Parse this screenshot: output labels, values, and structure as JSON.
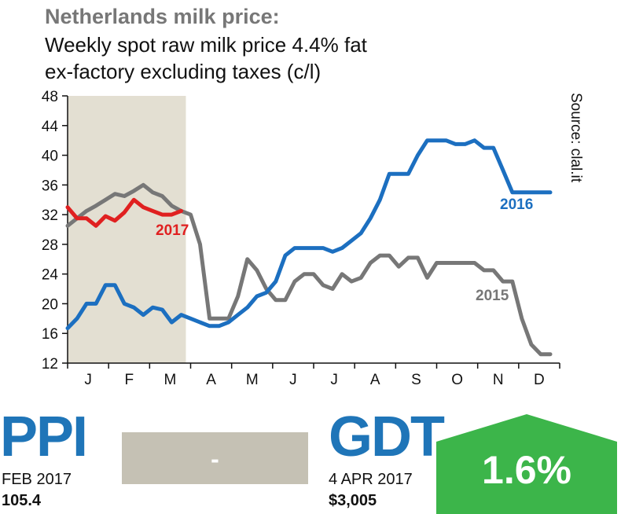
{
  "chart_data": {
    "type": "line",
    "title": "Netherlands milk price:",
    "subtitle_line1": "Weekly spot raw milk price 4.4% fat",
    "subtitle_line2": "ex-factory excluding taxes (c/l)",
    "source": "Source: clal.it",
    "xlabel": "",
    "ylabel": "",
    "ylim": [
      12,
      48
    ],
    "y_ticks": [
      "48",
      "44",
      "40",
      "36",
      "32",
      "28",
      "24",
      "20",
      "16",
      "12"
    ],
    "y_tick_values": [
      48,
      44,
      40,
      36,
      32,
      28,
      24,
      20,
      16,
      12
    ],
    "x_tick_labels": [
      "J",
      "F",
      "M",
      "A",
      "M",
      "J",
      "J",
      "A",
      "S",
      "O",
      "N",
      "D"
    ],
    "x_range_weeks": [
      0,
      52
    ],
    "shaded_weeks": [
      0,
      12.5
    ],
    "series": [
      {
        "name": "2015",
        "label": "2015",
        "color": "#777777",
        "weeks": [
          0,
          1,
          2,
          3,
          4,
          5,
          6,
          7,
          8,
          9,
          10,
          11,
          12,
          13,
          14,
          15,
          16,
          17,
          18,
          19,
          20,
          21,
          22,
          23,
          24,
          25,
          26,
          27,
          28,
          29,
          30,
          31,
          32,
          33,
          34,
          35,
          36,
          37,
          38,
          39,
          40,
          41,
          42,
          43,
          44,
          45,
          46,
          47,
          48,
          49,
          50,
          51
        ],
        "values": [
          30.5,
          31.5,
          32.5,
          33.2,
          34,
          34.8,
          34.5,
          35.2,
          36,
          35,
          34.5,
          33.2,
          32.5,
          32,
          28,
          18,
          18,
          18,
          21,
          26,
          24.5,
          22,
          20.5,
          20.5,
          23,
          24,
          24,
          22.5,
          22,
          24,
          23,
          23.5,
          25.5,
          26.5,
          26.5,
          25,
          26.2,
          26.2,
          23.5,
          25.5,
          25.5,
          25.5,
          25.5,
          25.5,
          24.5,
          24.5,
          23,
          23,
          18,
          14.5,
          13.2,
          13.2
        ]
      },
      {
        "name": "2016",
        "label": "2016",
        "color": "#1c6fc0",
        "weeks": [
          0,
          1,
          2,
          3,
          4,
          5,
          6,
          7,
          8,
          9,
          10,
          11,
          12,
          13,
          14,
          15,
          16,
          17,
          18,
          19,
          20,
          21,
          22,
          23,
          24,
          25,
          26,
          27,
          28,
          29,
          30,
          31,
          32,
          33,
          34,
          35,
          36,
          37,
          38,
          39,
          40,
          41,
          42,
          43,
          44,
          45,
          46,
          47,
          48,
          49,
          50,
          51
        ],
        "values": [
          16.7,
          18,
          20,
          20,
          22.5,
          22.5,
          20,
          19.5,
          18.5,
          19.5,
          19.2,
          17.5,
          18.5,
          18,
          17.5,
          17,
          17,
          17.5,
          18.5,
          19.5,
          21,
          21.5,
          23,
          26.5,
          27.5,
          27.5,
          27.5,
          27.5,
          27,
          27.5,
          28.5,
          29.5,
          31.5,
          34,
          37.5,
          37.5,
          37.5,
          40,
          42,
          42,
          42,
          41.5,
          41.5,
          42,
          41,
          41,
          38,
          35,
          35,
          35,
          35,
          35
        ]
      },
      {
        "name": "2017",
        "label": "2017",
        "color": "#e02020",
        "weeks": [
          0,
          1,
          2,
          3,
          4,
          5,
          6,
          7,
          8,
          9,
          10,
          11,
          12
        ],
        "values": [
          33,
          31.5,
          31.5,
          30.5,
          31.8,
          31.2,
          32.3,
          34,
          33,
          32.5,
          32,
          32,
          32.5
        ]
      }
    ]
  },
  "ppi": {
    "label": "PPI",
    "period": "FEB 2017",
    "value": "105.4",
    "change": "-",
    "box_color": "#c5c1b4"
  },
  "gdt": {
    "label": "GDT",
    "date": "4 APR 2017",
    "price": "$3,005",
    "change": "1.6%",
    "badge_color": "#3cb54a"
  }
}
